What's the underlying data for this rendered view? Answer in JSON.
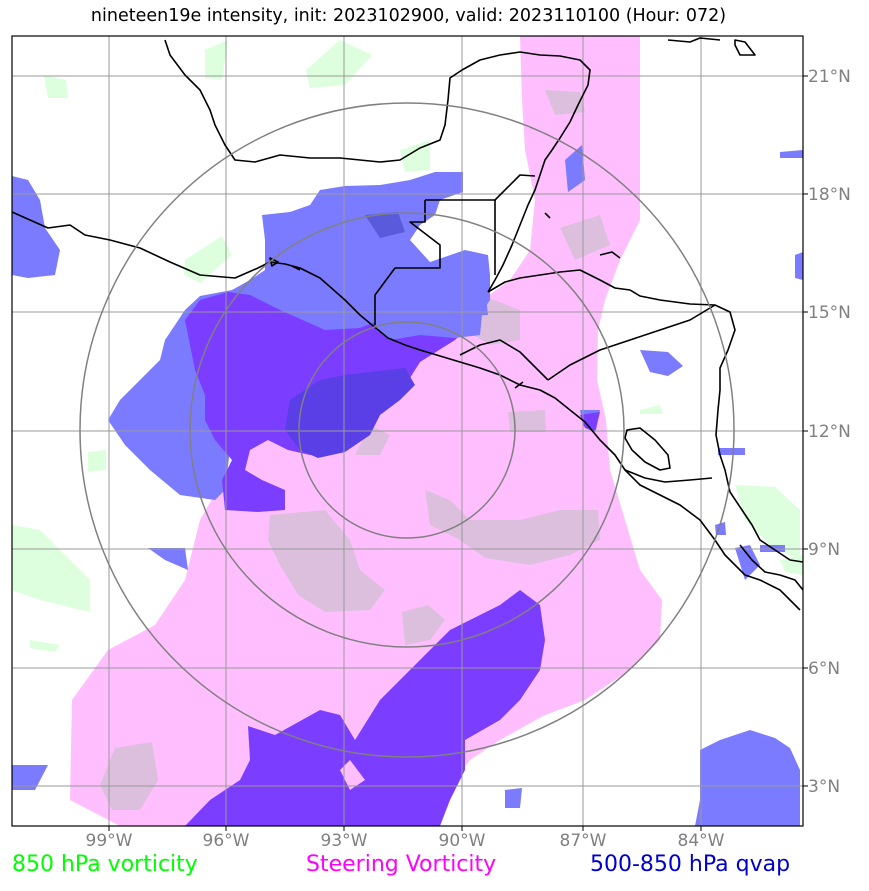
{
  "title": "nineteen19e intensity, init: 2023102900, valid: 2023110100 (Hour: 072)",
  "lon_labels": [
    "99°W",
    "96°W",
    "93°W",
    "90°W",
    "87°W",
    "84°W"
  ],
  "lat_labels": [
    "21°N",
    "18°N",
    "15°N",
    "12°N",
    "9°N",
    "6°N",
    "3°N"
  ],
  "legend": {
    "vorticity_850": "850 hPa vorticity",
    "steering": "Steering Vorticity",
    "qvap": "500-850 hPa qvap"
  },
  "colors": {
    "vorticity_850": "#00ff00",
    "steering": "#ff00ff",
    "qvap": "#0000cc",
    "green_fill": "#ddffdd",
    "pink_fill": "#ffbfff",
    "blue_fill": "#7b7bff",
    "purple_fill": "#7b3dff",
    "grid": "#999999",
    "range_rings": "#808080"
  },
  "map": {
    "lon_range": [
      -101.5,
      -81.5
    ],
    "lat_range": [
      2,
      22
    ],
    "center": {
      "lon": -91.3,
      "lat": 12.0
    },
    "range_rings_deg": [
      3,
      5.5,
      8
    ]
  }
}
